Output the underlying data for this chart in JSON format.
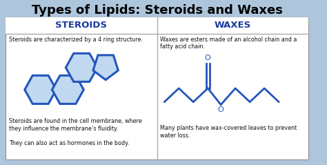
{
  "title": "Types of Lipids: Steroids and Waxes",
  "title_fontsize": 13,
  "title_fontweight": "bold",
  "bg_color": "#aec6dc",
  "panel_color": "#ffffff",
  "header_bg": "#ffffff",
  "header_text_color": "#1a3a9c",
  "body_text_color": "#111111",
  "structure_color": "#2255bb",
  "structure_fill": "#c0d8f0",
  "left_header": "STEROIDS",
  "right_header": "WAXES",
  "left_text1": "Steroids are characterized by a 4 ring structure.",
  "left_text2": "Steroids are found in the cell membrane, where\nthey influence the membrane’s fluidity.\n\nThey can also act as hormones in the body.",
  "right_text1": "Waxes are esters made of an alcohol chain and a\nfatty acid chain.",
  "right_text2": "Many plants have wax-covered leaves to prevent\nwater loss."
}
